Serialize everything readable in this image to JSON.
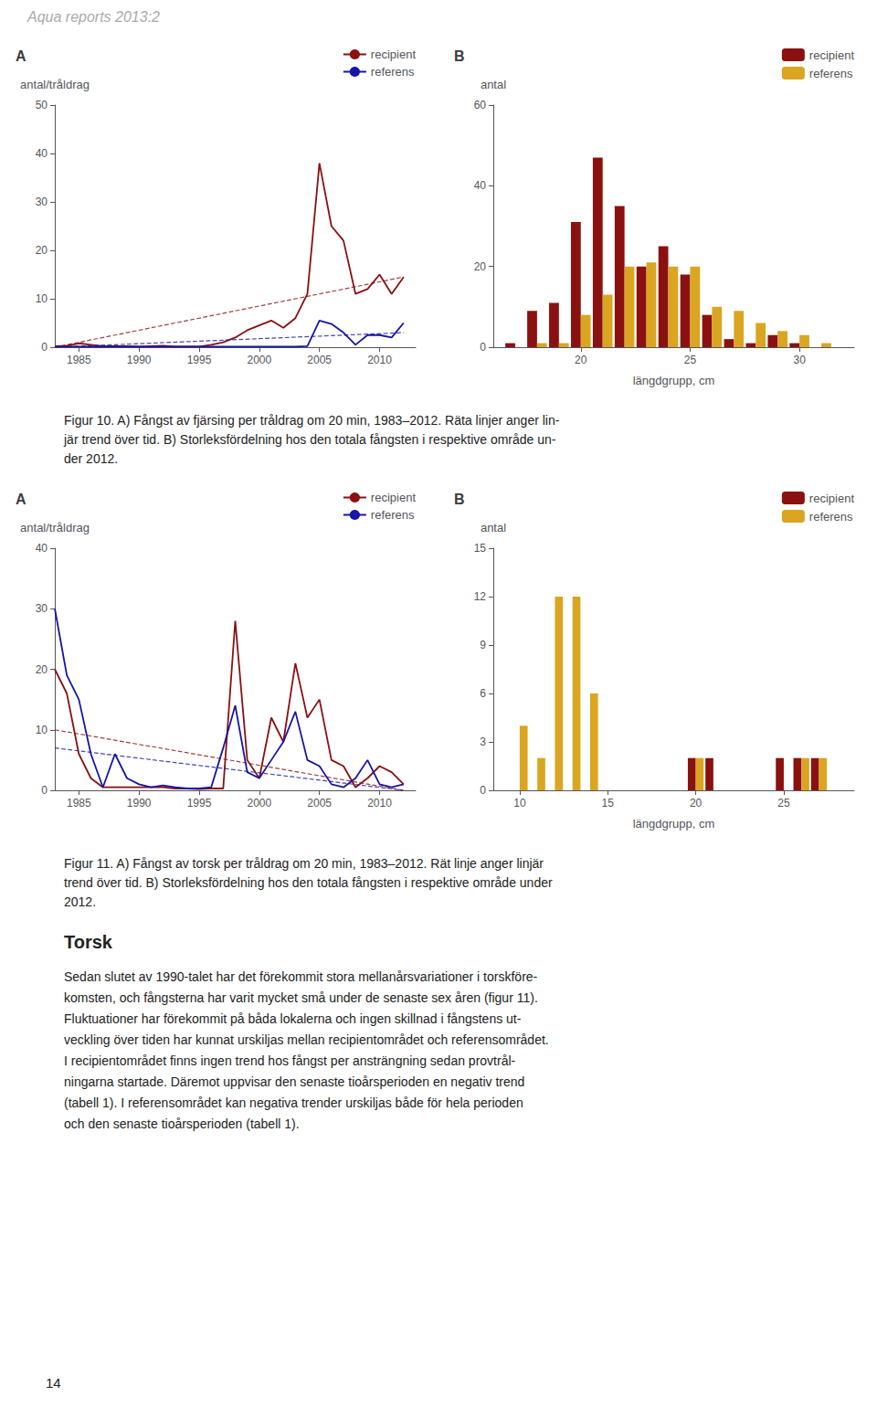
{
  "title": "Aqua reports 2013:2",
  "annotations": [
    "Figur 10. A) Fångst av fjärsing per tråldrag om 20 min, 1983–2012. Räta linjer anger lin-\njär trend över tid. B) Storleksfördelning hos den totala fångsten i respektive område un-\nder 2012.",
    "Figur 11. A) Fångst av torsk per tråldrag om 20 min, 1983–2012. Rät linje anger linjär\ntrend över tid. B) Storleksfördelning hos den totala fångsten i respektive område under\n2012.",
    "Torsk",
    "Sedan slutet av 1990-talet har det förekommit stora mellanårsvariationer i torskföre-\nkomsten, och fångsterna har varit mycket små under de senaste sex åren (figur 11).\nFluktuationer har förekommit på båda lokalerna och ingen skillnad i fångstens ut-\nveckling över tiden har kunnat urskiljas mellan recipientområdet och referensområdet.\nI recipientområdet finns ingen trend hos fångst per ansträngning sedan provtrål-\nningarna startade. Däremot uppvisar den senaste tioårsperioden en negativ trend\n(tabell 1). I referensområdet kan negativa trender urskiljas både för hela perioden\noch den senaste tioårsperioden (tabell 1).",
    "14"
  ],
  "chart_data": [
    {
      "type": "line",
      "title": "A",
      "ylabel": "antal/tråldrag",
      "x": [
        1983,
        1984,
        1985,
        1986,
        1987,
        1988,
        1989,
        1990,
        1991,
        1992,
        1993,
        1994,
        1995,
        1996,
        1997,
        1998,
        1999,
        2000,
        2001,
        2002,
        2003,
        2004,
        2005,
        2006,
        2007,
        2008,
        2009,
        2010,
        2011,
        2012
      ],
      "xlim": [
        1983,
        2013
      ],
      "xticks": [
        1985,
        1990,
        1995,
        2000,
        2005,
        2010
      ],
      "ylim": [
        0,
        50
      ],
      "yticks": [
        0,
        10,
        20,
        30,
        40,
        50
      ],
      "grid": false,
      "legend": "upper right",
      "series": [
        {
          "name": "recipient",
          "color": "#8B1010",
          "values": [
            0.2,
            0.3,
            0.8,
            0.5,
            0.2,
            0.2,
            0.2,
            0.1,
            0.2,
            0.3,
            0.1,
            0.1,
            0.1,
            0.5,
            1.0,
            2.0,
            3.5,
            4.5,
            5.5,
            4.0,
            6.0,
            11.0,
            38.0,
            25.0,
            22.0,
            11.0,
            12.0,
            15.0,
            11.0,
            14.5
          ]
        },
        {
          "name": "referens",
          "color": "#1515AA",
          "values": [
            0.1,
            0.1,
            0.1,
            0.1,
            0.1,
            0.1,
            0.1,
            0.1,
            0.1,
            0.1,
            0.1,
            0.1,
            0.1,
            0.1,
            0.1,
            0.1,
            0.1,
            0.1,
            0.1,
            0.1,
            0.1,
            0.2,
            5.5,
            4.8,
            3.0,
            0.5,
            2.5,
            2.5,
            2.0,
            5.0
          ]
        },
        {
          "color": "#8B1010",
          "line_style": "dashed",
          "x": [
            1983,
            2012
          ],
          "values": [
            0.0,
            14.5
          ]
        },
        {
          "color": "#1515AA",
          "line_style": "dashed",
          "x": [
            1983,
            2012
          ],
          "values": [
            0.0,
            3.0
          ]
        }
      ]
    },
    {
      "type": "bar",
      "title": "B",
      "ylabel": "antal",
      "xlabel": "längdgrupp, cm",
      "x": [
        17,
        18,
        19,
        20,
        21,
        22,
        23,
        24,
        25,
        26,
        27,
        28,
        29,
        30,
        31
      ],
      "xlim": [
        16.0,
        32.5
      ],
      "xticks": [
        20,
        25,
        30
      ],
      "ylim": [
        0,
        60
      ],
      "yticks": [
        0,
        20,
        40,
        60
      ],
      "grid": false,
      "legend": "upper right",
      "series": [
        {
          "name": "recipient",
          "color": "#8B1010",
          "values": [
            1,
            9,
            11,
            31,
            47,
            35,
            20,
            25,
            18,
            8,
            2,
            1,
            3,
            1,
            0
          ]
        },
        {
          "name": "referens",
          "color": "#DAA520",
          "values": [
            0,
            1,
            1,
            8,
            13,
            20,
            21,
            20,
            20,
            10,
            9,
            6,
            4,
            3,
            1
          ]
        }
      ]
    },
    {
      "type": "line",
      "title": "A",
      "ylabel": "antal/tråldrag",
      "x": [
        1983,
        1984,
        1985,
        1986,
        1987,
        1988,
        1989,
        1990,
        1991,
        1992,
        1993,
        1994,
        1995,
        1996,
        1997,
        1998,
        1999,
        2000,
        2001,
        2002,
        2003,
        2004,
        2005,
        2006,
        2007,
        2008,
        2009,
        2010,
        2011,
        2012
      ],
      "xlim": [
        1983,
        2013
      ],
      "xticks": [
        1985,
        1990,
        1995,
        2000,
        2005,
        2010
      ],
      "ylim": [
        0,
        40
      ],
      "yticks": [
        0,
        10,
        20,
        30,
        40
      ],
      "grid": false,
      "legend": "upper right",
      "series": [
        {
          "name": "recipient",
          "color": "#8B1010",
          "values": [
            20,
            16,
            6,
            2,
            0.5,
            0.5,
            0.5,
            0.5,
            0.5,
            0.5,
            0.3,
            0.3,
            0.2,
            0.3,
            0.3,
            28,
            5,
            2,
            12,
            8,
            21,
            12,
            15,
            5,
            4,
            0.5,
            2,
            4,
            3,
            1
          ]
        },
        {
          "name": "referens",
          "color": "#1515AA",
          "values": [
            30,
            19,
            15,
            6,
            0.5,
            6,
            2,
            1,
            0.5,
            0.8,
            0.5,
            0.3,
            0.3,
            0.5,
            7,
            14,
            3,
            2,
            5,
            8,
            13,
            5,
            4,
            1,
            0.5,
            2,
            5,
            1,
            0.5,
            1
          ]
        },
        {
          "color": "#8B1010",
          "line_style": "dashed",
          "x": [
            1983,
            2012
          ],
          "values": [
            10.0,
            0.0
          ]
        },
        {
          "color": "#1515AA",
          "line_style": "dashed",
          "x": [
            1983,
            2012
          ],
          "values": [
            7.0,
            0.0
          ]
        }
      ]
    },
    {
      "type": "bar",
      "title": "B",
      "ylabel": "antal",
      "xlabel": "längdgrupp, cm",
      "x": [
        10,
        11,
        12,
        13,
        14,
        20,
        21,
        25,
        26,
        27
      ],
      "xlim": [
        8.5,
        29.0
      ],
      "xticks": [
        10,
        15,
        20,
        25
      ],
      "ylim": [
        0,
        15
      ],
      "yticks": [
        0,
        3,
        6,
        9,
        12,
        15
      ],
      "grid": false,
      "legend": "upper right",
      "series": [
        {
          "name": "recipient",
          "color": "#8B1010",
          "values": [
            0,
            0,
            0,
            0,
            0,
            2,
            2,
            2,
            2,
            2
          ]
        },
        {
          "name": "referens",
          "color": "#DAA520",
          "values": [
            4,
            2,
            12,
            12,
            6,
            2,
            0,
            0,
            2,
            2
          ]
        }
      ]
    }
  ]
}
